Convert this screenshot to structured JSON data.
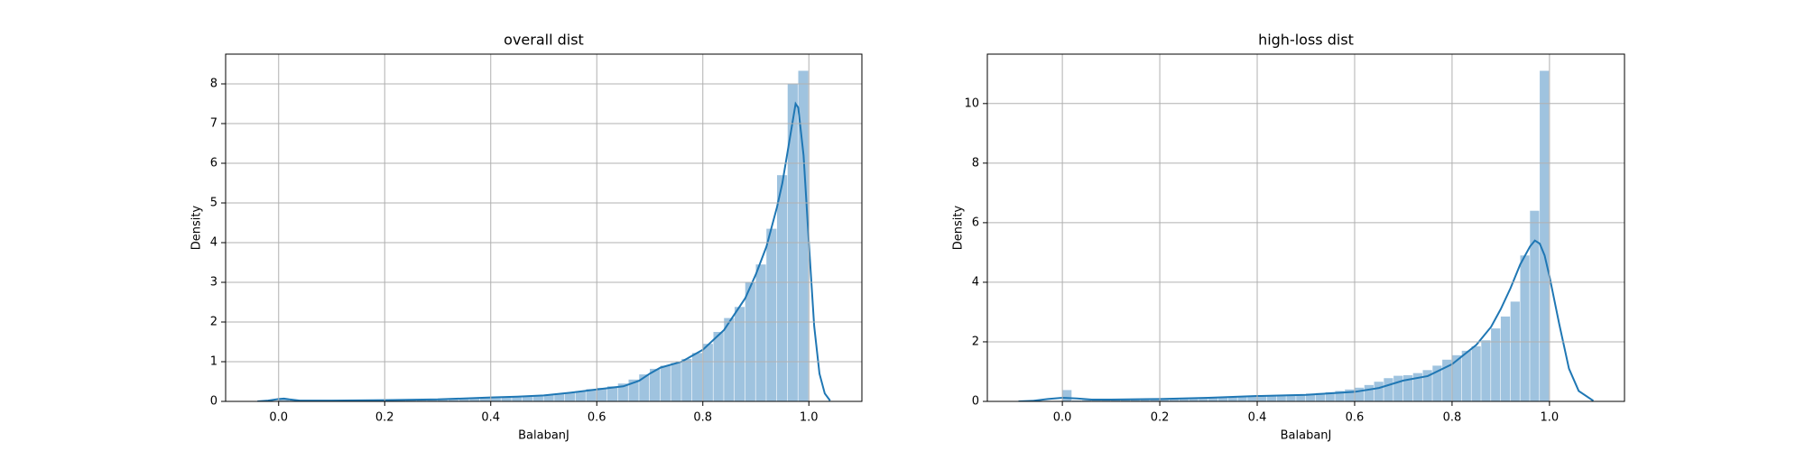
{
  "chart_data": [
    {
      "type": "histogram",
      "title": "overall dist",
      "xlabel": "BalabanJ",
      "ylabel": "Density",
      "bins": [
        0,
        0.02,
        0.04,
        0.06,
        0.08,
        0.1,
        0.12,
        0.14,
        0.16,
        0.18,
        0.2,
        0.22,
        0.24,
        0.26,
        0.28,
        0.3,
        0.32,
        0.34,
        0.36,
        0.38,
        0.4,
        0.42,
        0.44,
        0.46,
        0.48,
        0.5,
        0.52,
        0.54,
        0.56,
        0.58,
        0.6,
        0.62,
        0.64,
        0.66,
        0.68,
        0.7,
        0.72,
        0.74,
        0.76,
        0.78,
        0.8,
        0.82,
        0.84,
        0.86,
        0.88,
        0.9,
        0.92,
        0.94,
        0.96,
        0.98,
        1.0
      ],
      "values": [
        0.06,
        0.03,
        0.02,
        0.02,
        0.02,
        0.02,
        0.02,
        0.02,
        0.02,
        0.03,
        0.03,
        0.03,
        0.03,
        0.04,
        0.04,
        0.05,
        0.05,
        0.06,
        0.07,
        0.08,
        0.09,
        0.1,
        0.11,
        0.13,
        0.15,
        0.17,
        0.19,
        0.22,
        0.26,
        0.31,
        0.34,
        0.38,
        0.45,
        0.55,
        0.68,
        0.82,
        0.9,
        0.97,
        1.07,
        1.22,
        1.45,
        1.75,
        2.1,
        2.38,
        3.0,
        3.45,
        4.35,
        5.7,
        8.0,
        8.33
      ],
      "kde_x": [
        -0.04,
        -0.02,
        0,
        0.01,
        0.02,
        0.04,
        0.1,
        0.2,
        0.3,
        0.4,
        0.45,
        0.5,
        0.55,
        0.6,
        0.65,
        0.68,
        0.7,
        0.72,
        0.76,
        0.8,
        0.84,
        0.88,
        0.9,
        0.92,
        0.94,
        0.95,
        0.96,
        0.97,
        0.975,
        0.98,
        0.99,
        1.0,
        1.01,
        1.02,
        1.03,
        1.04
      ],
      "kde_y": [
        0,
        0.02,
        0.06,
        0.07,
        0.05,
        0.02,
        0.02,
        0.03,
        0.05,
        0.1,
        0.12,
        0.15,
        0.22,
        0.3,
        0.38,
        0.52,
        0.7,
        0.85,
        1.0,
        1.3,
        1.8,
        2.6,
        3.2,
        3.9,
        4.9,
        5.5,
        6.3,
        7.1,
        7.5,
        7.4,
        6.2,
        4.0,
        1.9,
        0.7,
        0.2,
        0.02
      ],
      "bar_color": "#9fc3df",
      "line_color": "#1f77b4",
      "xlim": [
        -0.1,
        1.1
      ],
      "ylim": [
        0,
        8.75
      ],
      "xticks": [
        {
          "value": 0,
          "label": "0.0"
        },
        {
          "value": 0.2,
          "label": "0.2"
        },
        {
          "value": 0.4,
          "label": "0.4"
        },
        {
          "value": 0.6,
          "label": "0.6"
        },
        {
          "value": 0.8,
          "label": "0.8"
        },
        {
          "value": 1,
          "label": "1.0"
        }
      ],
      "yticks": [
        0,
        1,
        2,
        3,
        4,
        5,
        6,
        7,
        8
      ],
      "grid": true
    },
    {
      "type": "histogram",
      "title": "high-loss dist",
      "xlabel": "BalabanJ",
      "ylabel": "Density",
      "bins": [
        0,
        0.02,
        0.04,
        0.06,
        0.08,
        0.1,
        0.12,
        0.14,
        0.16,
        0.18,
        0.2,
        0.22,
        0.24,
        0.26,
        0.28,
        0.3,
        0.32,
        0.34,
        0.36,
        0.38,
        0.4,
        0.42,
        0.44,
        0.46,
        0.48,
        0.5,
        0.52,
        0.54,
        0.56,
        0.58,
        0.6,
        0.62,
        0.64,
        0.66,
        0.68,
        0.7,
        0.72,
        0.74,
        0.76,
        0.78,
        0.8,
        0.82,
        0.84,
        0.86,
        0.88,
        0.9,
        0.92,
        0.94,
        0.96,
        0.98,
        1.0
      ],
      "values": [
        0.38,
        0.03,
        0.04,
        0.05,
        0.05,
        0.06,
        0.06,
        0.07,
        0.07,
        0.08,
        0.09,
        0.1,
        0.1,
        0.11,
        0.12,
        0.13,
        0.14,
        0.15,
        0.17,
        0.18,
        0.19,
        0.2,
        0.21,
        0.23,
        0.24,
        0.26,
        0.28,
        0.31,
        0.35,
        0.4,
        0.46,
        0.55,
        0.66,
        0.78,
        0.86,
        0.88,
        0.95,
        1.05,
        1.2,
        1.4,
        1.55,
        1.7,
        1.85,
        2.05,
        2.45,
        2.85,
        3.35,
        4.9,
        6.4,
        11.1
      ],
      "kde_x": [
        -0.09,
        -0.06,
        -0.03,
        0,
        0.03,
        0.06,
        0.1,
        0.2,
        0.3,
        0.4,
        0.5,
        0.6,
        0.65,
        0.7,
        0.75,
        0.8,
        0.85,
        0.88,
        0.9,
        0.92,
        0.94,
        0.96,
        0.97,
        0.98,
        0.99,
        1.0,
        1.02,
        1.04,
        1.06,
        1.09
      ],
      "kde_y": [
        0,
        0.02,
        0.08,
        0.12,
        0.1,
        0.06,
        0.06,
        0.08,
        0.12,
        0.18,
        0.22,
        0.32,
        0.45,
        0.7,
        0.85,
        1.25,
        1.9,
        2.5,
        3.1,
        3.8,
        4.6,
        5.2,
        5.4,
        5.3,
        4.9,
        4.2,
        2.6,
        1.1,
        0.35,
        0.02
      ],
      "bar_color": "#9fc3df",
      "line_color": "#1f77b4",
      "xlim": [
        -0.154,
        1.154
      ],
      "ylim": [
        0,
        11.66
      ],
      "xticks": [
        {
          "value": 0,
          "label": "0.0"
        },
        {
          "value": 0.2,
          "label": "0.2"
        },
        {
          "value": 0.4,
          "label": "0.4"
        },
        {
          "value": 0.6,
          "label": "0.6"
        },
        {
          "value": 0.8,
          "label": "0.8"
        },
        {
          "value": 1,
          "label": "1.0"
        }
      ],
      "yticks": [
        0,
        2,
        4,
        6,
        8,
        10
      ],
      "grid": true
    }
  ]
}
